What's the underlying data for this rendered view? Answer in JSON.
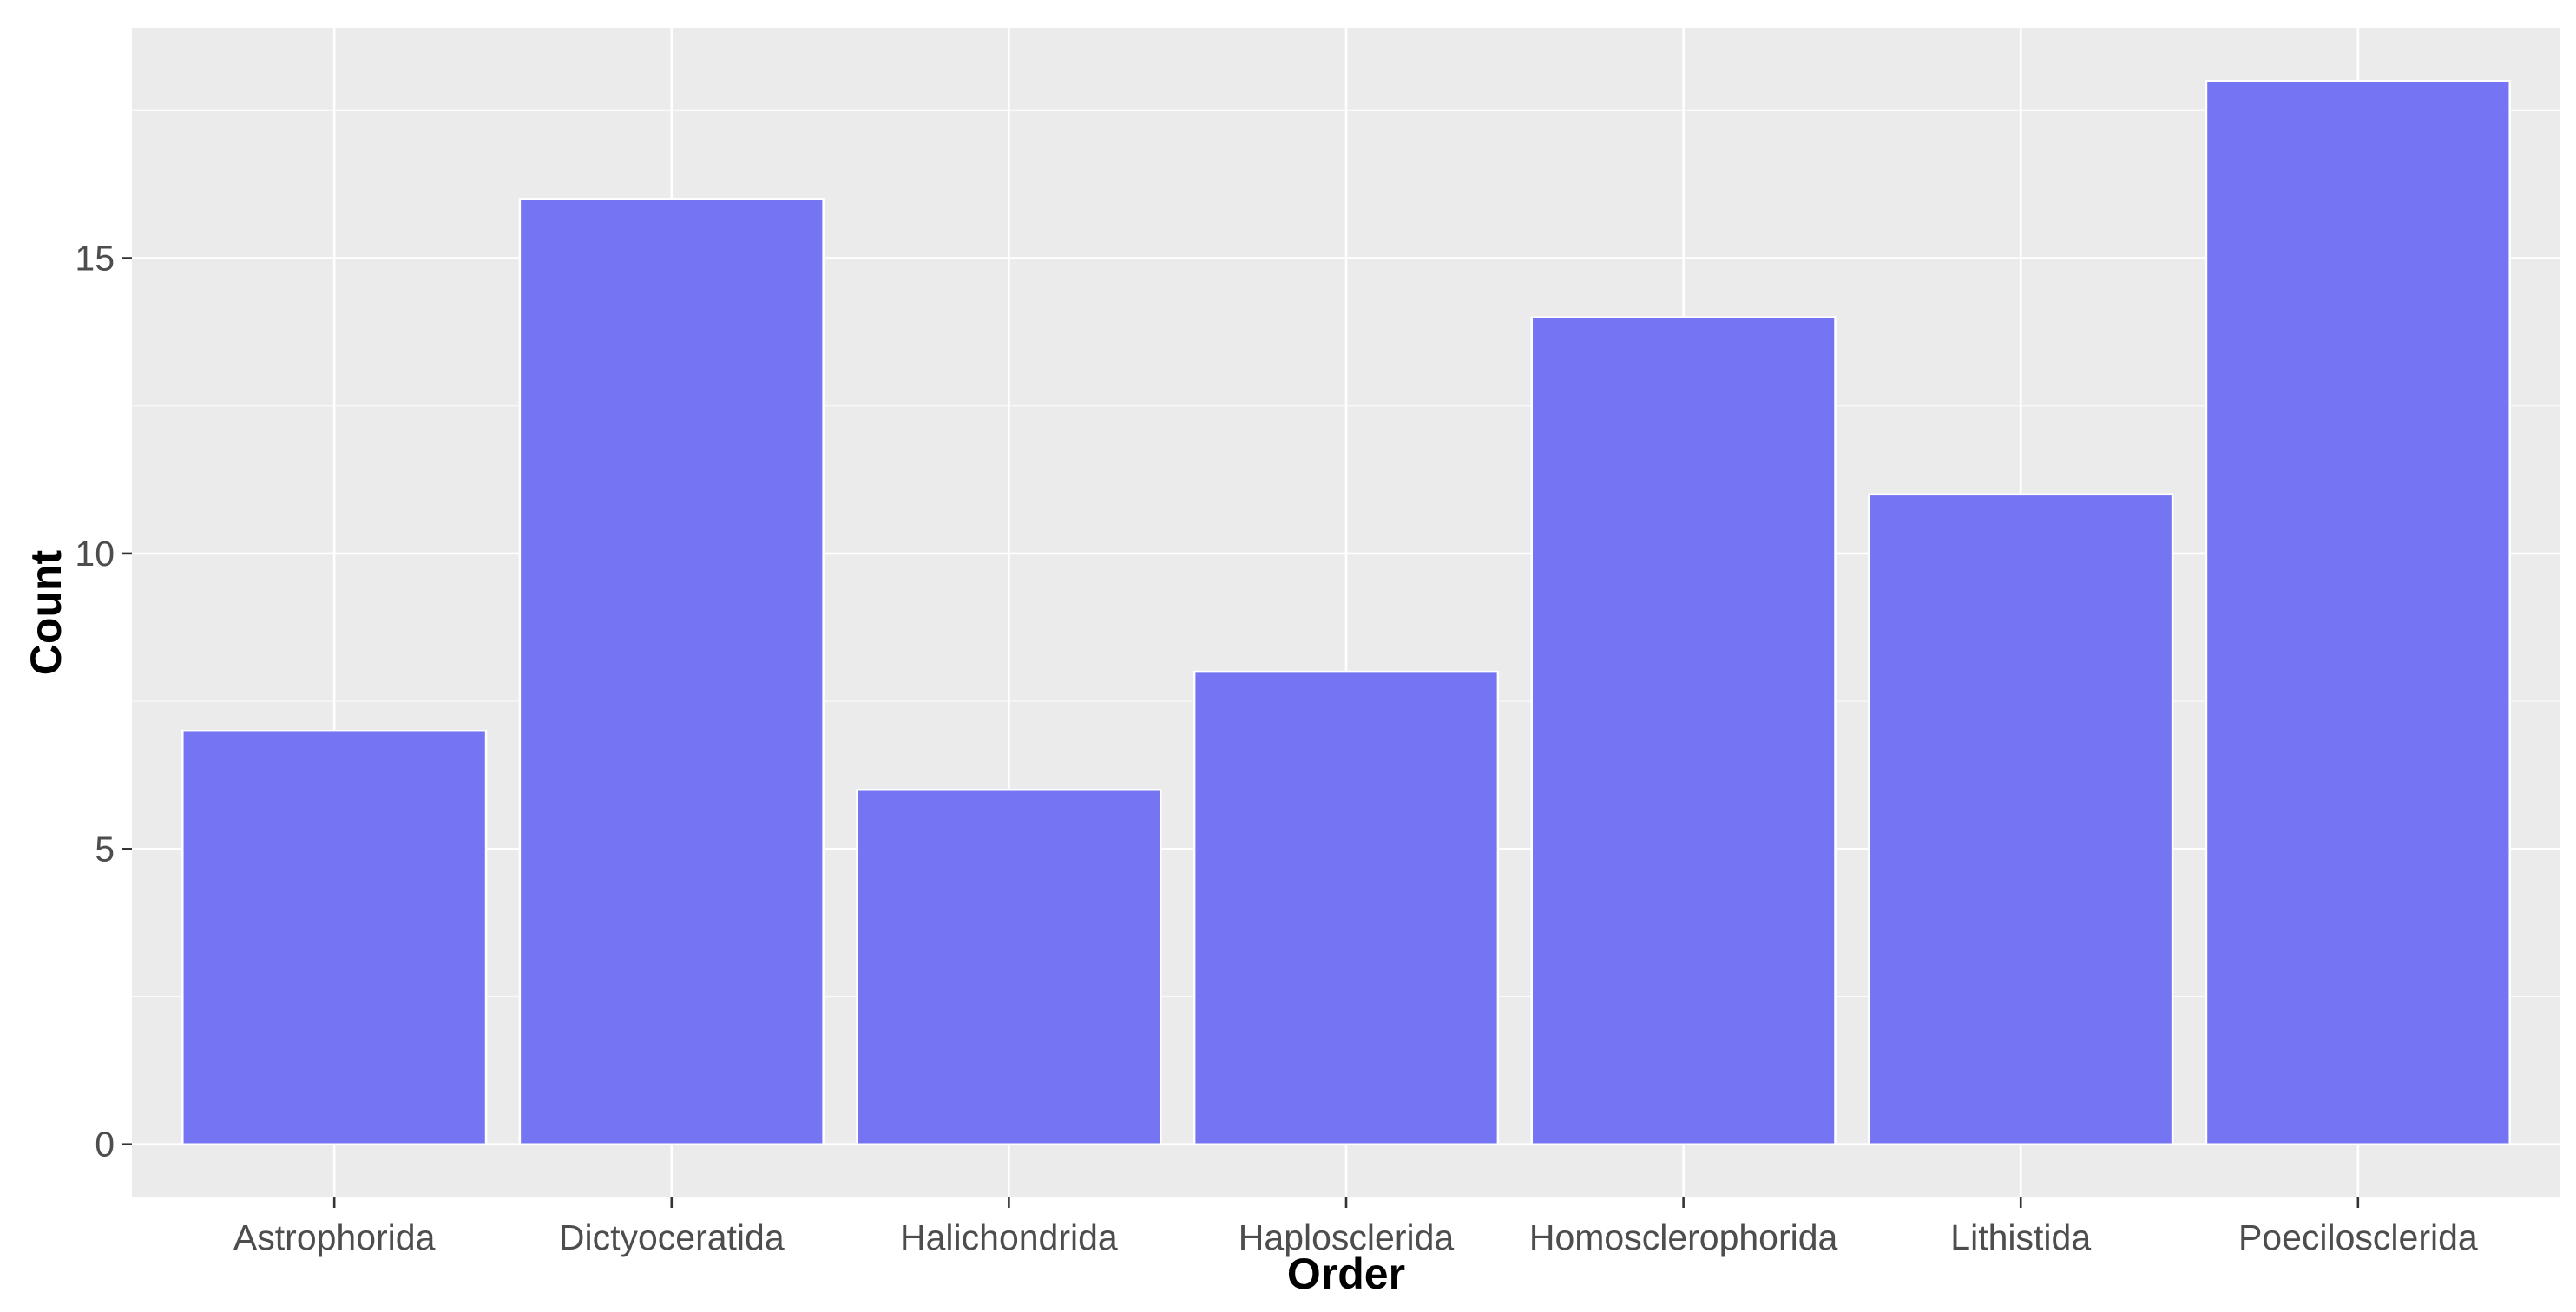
{
  "chart_data": {
    "type": "bar",
    "title": "",
    "xlabel": "Order",
    "ylabel": "Count",
    "categories": [
      "Astrophorida",
      "Dictyoceratida",
      "Halichondrida",
      "Haplosclerida",
      "Homosclerophorida",
      "Lithistida",
      "Poecilosclerida"
    ],
    "values": [
      7,
      16,
      6,
      8,
      14,
      11,
      18
    ],
    "ylim": [
      -0.9,
      18.9
    ],
    "yticks": [
      0,
      5,
      10,
      15
    ],
    "ytick_labels": [
      "0",
      "5",
      "10",
      "15"
    ],
    "grid": true,
    "legend": "none",
    "colors": {
      "bar_fill": "#7575f3",
      "bar_stroke": "#ffffff",
      "panel_background": "#ebebeb",
      "grid": "#ffffff"
    }
  }
}
